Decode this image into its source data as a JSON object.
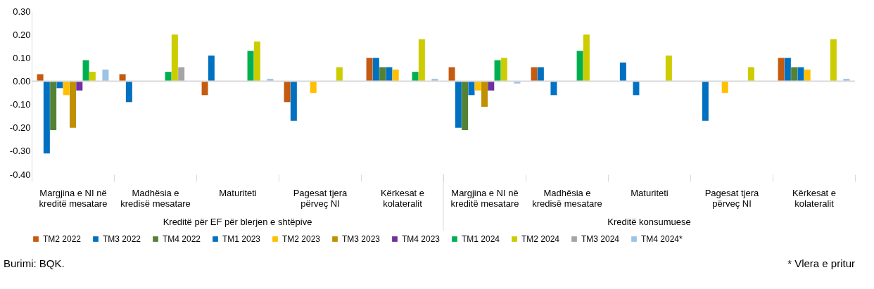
{
  "chart_data": {
    "type": "bar",
    "categories": [
      "Margjina e NI në\nkreditë mesatare",
      "Madhësia e\nkredisë mesatare",
      "Maturiteti",
      "Pagesat tjera\npërveç NI",
      "Kërkesat e\nkolateralit",
      "Margjina e NI në\nkreditë mesatare",
      "Madhësia e\nkredisë mesatare",
      "Maturiteti",
      "Pagesat tjera\npërveç NI",
      "Kërkesat e\nkolateralit"
    ],
    "series": [
      {
        "name": "TM2 2022",
        "color": "#c55a11",
        "values": [
          0.03,
          0.03,
          -0.06,
          -0.09,
          0.1,
          0.06,
          0.06,
          0,
          0,
          0.1
        ]
      },
      {
        "name": "TM3 2022",
        "color": "#0070c0",
        "values": [
          -0.31,
          -0.09,
          0.11,
          -0.17,
          0.1,
          -0.2,
          0.06,
          0.08,
          -0.17,
          0.1
        ]
      },
      {
        "name": "TM4 2022",
        "color": "#548235",
        "values": [
          -0.21,
          0,
          0,
          0,
          0.06,
          -0.21,
          0,
          0,
          0,
          0.06
        ]
      },
      {
        "name": "TM1 2023",
        "color": "#0072c6",
        "values": [
          -0.03,
          0,
          0,
          0,
          0.06,
          -0.06,
          -0.06,
          -0.06,
          0,
          0.06
        ]
      },
      {
        "name": "TM2 2023",
        "color": "#ffc000",
        "values": [
          -0.06,
          0,
          0,
          -0.05,
          0.05,
          -0.04,
          0,
          0,
          -0.05,
          0.05
        ]
      },
      {
        "name": "TM3 2023",
        "color": "#bf9000",
        "values": [
          -0.2,
          0,
          0,
          0,
          0,
          -0.11,
          0,
          0,
          0,
          0
        ]
      },
      {
        "name": "TM4 2023",
        "color": "#7030a0",
        "values": [
          -0.04,
          0,
          0,
          0,
          0,
          -0.04,
          0,
          0,
          0,
          0
        ]
      },
      {
        "name": "TM1 2024",
        "color": "#00b050",
        "values": [
          0.09,
          0.04,
          0.13,
          0,
          0.04,
          0.09,
          0.13,
          0,
          0,
          0
        ]
      },
      {
        "name": "TM2 2024",
        "color": "#cccc00",
        "values": [
          0.04,
          0.2,
          0.17,
          0.06,
          0.18,
          0.1,
          0.2,
          0.11,
          0.06,
          0.18
        ]
      },
      {
        "name": "TM3 2024",
        "color": "#a5a5a5",
        "values": [
          0,
          0.06,
          0,
          0,
          0,
          0,
          0,
          0,
          0,
          0
        ]
      },
      {
        "name": "TM4 2024*",
        "color": "#9dc3e6",
        "values": [
          0.05,
          0,
          0.01,
          0,
          0.01,
          -0.01,
          0,
          0,
          0,
          0.01
        ]
      }
    ],
    "ylim": [
      -0.4,
      0.3
    ],
    "yticks": [
      {
        "value": -0.4,
        "label": "-0.40"
      },
      {
        "value": -0.3,
        "label": "-0.30"
      },
      {
        "value": -0.2,
        "label": "-0.20"
      },
      {
        "value": -0.1,
        "label": "-0.10"
      },
      {
        "value": 0,
        "label": "0.00"
      },
      {
        "value": 0.1,
        "label": "0.10"
      },
      {
        "value": 0.2,
        "label": "0.20"
      },
      {
        "value": 0.3,
        "label": "0.30"
      }
    ],
    "ref_lines": [
      {
        "axis": "y",
        "value": 0,
        "color": "#d9d9d9"
      }
    ],
    "annotations": [
      "Kreditë për EF për blerjen e shtëpive",
      "Kreditë konsumuese",
      "Burimi: BQK.",
      "* Vlera e pritur"
    ],
    "grid": false,
    "legend": "bottom"
  }
}
